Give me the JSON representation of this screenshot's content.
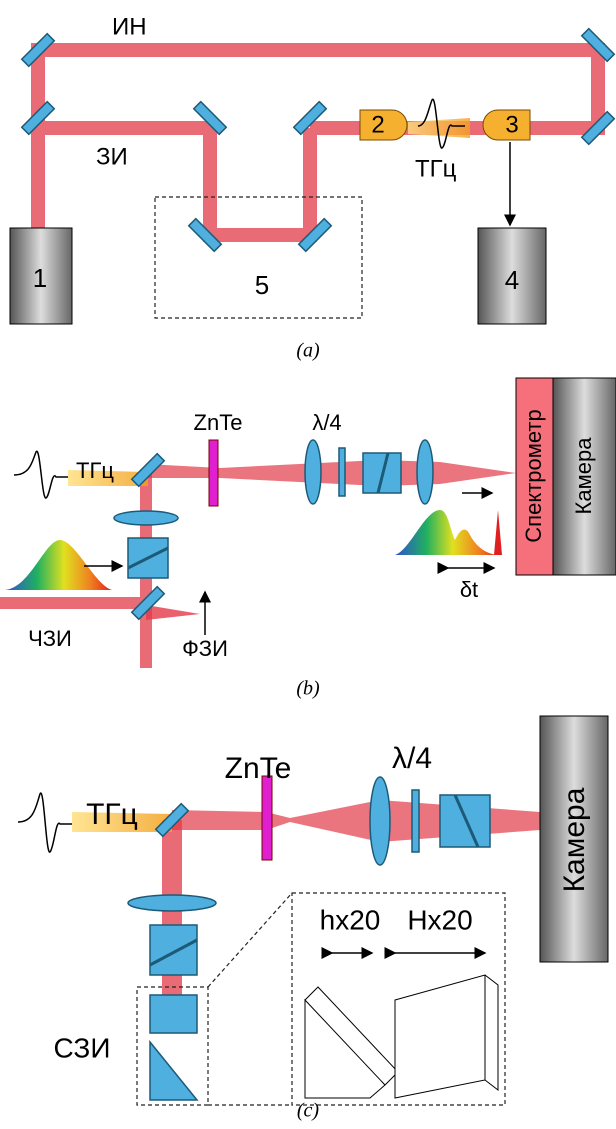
{
  "panel_a": {
    "reference_beam": "ИН",
    "probe_beam": "ЗИ",
    "thz": "ТГц",
    "laser": "1",
    "emitter": "2",
    "detector": "3",
    "lockin": "4",
    "delay_line": "5",
    "caption": "(a)"
  },
  "panel_b": {
    "thz": "ТГц",
    "crystal": "ZnTe",
    "waveplate": "λ/4",
    "spectrometer": "Спектрометр",
    "camera": "Камера",
    "chirped_probe": "ЧЗИ",
    "fs_probe": "ФЗИ",
    "delay": "δt",
    "caption": "(b)"
  },
  "panel_c": {
    "thz": "ТГц",
    "crystal": "ZnTe",
    "waveplate": "λ/4",
    "camera": "Камера",
    "small_prism": "hx20",
    "large_prism": "Hx20",
    "probe": "СЗИ",
    "caption": "(c)"
  }
}
